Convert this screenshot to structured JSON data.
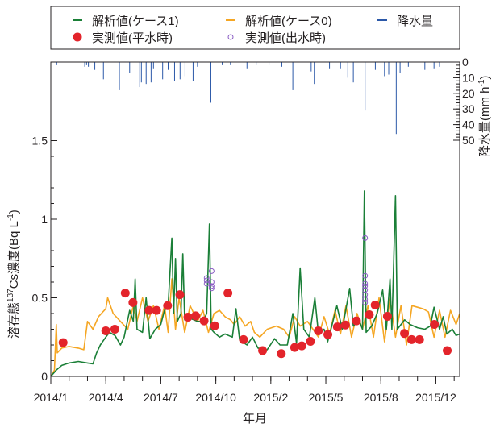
{
  "chart_data": {
    "type": "line",
    "title": "",
    "xlabel": "年月",
    "ylabel": "溶存態137Cs濃度(Bq L-1)",
    "ylabel_parts": {
      "prefix": "溶存態",
      "sup": "137",
      "mid": "Cs濃度(Bq L",
      "sup2": "-1",
      "suffix": ")"
    },
    "y2label_parts": {
      "prefix": "降水量(mm h",
      "sup": "-1",
      "suffix": ")"
    },
    "x_unit": "months since 2014/1 (tick index)",
    "xlim": [
      0,
      22.3
    ],
    "ylim": [
      0,
      2.0
    ],
    "y2lim": [
      0,
      50
    ],
    "y2_inverted": true,
    "x_ticks": [
      {
        "x": 0,
        "label": "2014/1"
      },
      {
        "x": 3,
        "label": "2014/4"
      },
      {
        "x": 6,
        "label": "2014/7"
      },
      {
        "x": 9,
        "label": "2014/10"
      },
      {
        "x": 12,
        "label": "2015/2"
      },
      {
        "x": 15,
        "label": "2015/5"
      },
      {
        "x": 18,
        "label": "2015/8"
      },
      {
        "x": 21,
        "label": "2015/12"
      }
    ],
    "y_ticks": [
      {
        "v": 0,
        "label": "0"
      },
      {
        "v": 0.5,
        "label": "0.5"
      },
      {
        "v": 1,
        "label": "1"
      },
      {
        "v": 1.5,
        "label": "1.5"
      }
    ],
    "y2_ticks": [
      {
        "v": 0,
        "label": "0"
      },
      {
        "v": 10,
        "label": "10"
      },
      {
        "v": 20,
        "label": "20"
      },
      {
        "v": 30,
        "label": "30"
      },
      {
        "v": 40,
        "label": "40"
      },
      {
        "v": 50,
        "label": "50"
      }
    ],
    "legend": {
      "placement": "top",
      "entries": [
        {
          "key": "case1",
          "label": "解析値(ケース1)"
        },
        {
          "key": "case0",
          "label": "解析値(ケース0)"
        },
        {
          "key": "rain",
          "label": "降水量"
        },
        {
          "key": "obs_base",
          "label": "実測値(平水時)"
        },
        {
          "key": "obs_flood",
          "label": "実測値(出水時)"
        }
      ]
    },
    "colors": {
      "case1": "#1a7f37",
      "case0": "#f5a623",
      "rain": "#2b58a8",
      "obs_base": "#e3242b",
      "obs_flood": "#8a5cc4"
    },
    "series": [
      {
        "name": "解析値(ケース1)",
        "key": "case1",
        "points": [
          [
            0,
            0
          ],
          [
            0.3,
            0.04
          ],
          [
            0.6,
            0.07
          ],
          [
            1,
            0.085
          ],
          [
            1.5,
            0.095
          ],
          [
            2,
            0.085
          ],
          [
            2.3,
            0.08
          ],
          [
            2.5,
            0.15
          ],
          [
            2.7,
            0.2
          ],
          [
            3,
            0.25
          ],
          [
            3.2,
            0.28
          ],
          [
            3.5,
            0.26
          ],
          [
            3.8,
            0.2
          ],
          [
            4,
            0.25
          ],
          [
            4.3,
            0.42
          ],
          [
            4.5,
            0.35
          ],
          [
            4.6,
            0.62
          ],
          [
            4.7,
            0.3
          ],
          [
            5,
            0.28
          ],
          [
            5.2,
            0.5
          ],
          [
            5.4,
            0.24
          ],
          [
            5.7,
            0.3
          ],
          [
            6,
            0.33
          ],
          [
            6.2,
            0.42
          ],
          [
            6.4,
            0.45
          ],
          [
            6.6,
            0.88
          ],
          [
            6.7,
            0.4
          ],
          [
            6.8,
            0.75
          ],
          [
            6.9,
            0.35
          ],
          [
            7.1,
            0.4
          ],
          [
            7.2,
            0.78
          ],
          [
            7.3,
            0.36
          ],
          [
            7.6,
            0.37
          ],
          [
            8,
            0.35
          ],
          [
            8.3,
            0.35
          ],
          [
            8.5,
            0.4
          ],
          [
            8.65,
            0.97
          ],
          [
            8.75,
            0.3
          ],
          [
            8.9,
            0.28
          ],
          [
            9.2,
            0.25
          ],
          [
            9.5,
            0.27
          ],
          [
            9.9,
            0.25
          ],
          [
            10.1,
            0.43
          ],
          [
            10.3,
            0.23
          ],
          [
            10.7,
            0.2
          ],
          [
            11,
            0.25
          ],
          [
            11.3,
            0.18
          ],
          [
            11.8,
            0.17
          ],
          [
            12.2,
            0.24
          ],
          [
            12.5,
            0.2
          ],
          [
            12.9,
            0.2
          ],
          [
            13.2,
            0.4
          ],
          [
            13.4,
            0.21
          ],
          [
            13.6,
            0.69
          ],
          [
            13.8,
            0.3
          ],
          [
            14.1,
            0.25
          ],
          [
            14.4,
            0.5
          ],
          [
            14.6,
            0.27
          ],
          [
            14.9,
            0.3
          ],
          [
            15.1,
            0.22
          ],
          [
            15.3,
            0.31
          ],
          [
            15.6,
            0.45
          ],
          [
            15.9,
            0.3
          ],
          [
            16.3,
            0.56
          ],
          [
            16.5,
            0.32
          ],
          [
            16.8,
            0.36
          ],
          [
            17.0,
            0.3
          ],
          [
            17.1,
            1.18
          ],
          [
            17.2,
            0.28
          ],
          [
            17.5,
            0.32
          ],
          [
            17.8,
            0.4
          ],
          [
            18.1,
            0.55
          ],
          [
            18.3,
            0.3
          ],
          [
            18.5,
            0.62
          ],
          [
            18.6,
            0.3
          ],
          [
            18.8,
            1.15
          ],
          [
            18.9,
            0.3
          ],
          [
            19.3,
            0.36
          ],
          [
            19.6,
            0.33
          ],
          [
            20,
            0.31
          ],
          [
            20.4,
            0.3
          ],
          [
            20.7,
            0.32
          ],
          [
            20.9,
            0.44
          ],
          [
            21.2,
            0.3
          ],
          [
            21.4,
            0.38
          ],
          [
            21.6,
            0.27
          ],
          [
            21.9,
            0.3
          ],
          [
            22.1,
            0.26
          ],
          [
            22.3,
            0.27
          ]
        ]
      },
      {
        "name": "解析値(ケース0)",
        "key": "case0",
        "points": [
          [
            0,
            0
          ],
          [
            0.2,
            0.04
          ],
          [
            0.3,
            0.33
          ],
          [
            0.35,
            0.15
          ],
          [
            0.6,
            0.18
          ],
          [
            1,
            0.19
          ],
          [
            1.5,
            0.18
          ],
          [
            1.8,
            0.17
          ],
          [
            2,
            0.35
          ],
          [
            2.3,
            0.3
          ],
          [
            2.6,
            0.38
          ],
          [
            3,
            0.43
          ],
          [
            3.1,
            0.5
          ],
          [
            3.4,
            0.4
          ],
          [
            3.8,
            0.35
          ],
          [
            4.2,
            0.3
          ],
          [
            4.5,
            0.45
          ],
          [
            4.7,
            0.35
          ],
          [
            5,
            0.5
          ],
          [
            5.3,
            0.35
          ],
          [
            5.6,
            0.45
          ],
          [
            5.9,
            0.3
          ],
          [
            6.2,
            0.45
          ],
          [
            6.4,
            0.28
          ],
          [
            6.6,
            0.62
          ],
          [
            6.8,
            0.3
          ],
          [
            7,
            0.5
          ],
          [
            7.3,
            0.28
          ],
          [
            7.6,
            0.45
          ],
          [
            8,
            0.35
          ],
          [
            8.3,
            0.42
          ],
          [
            8.6,
            0.28
          ],
          [
            8.9,
            0.4
          ],
          [
            9.2,
            0.42
          ],
          [
            9.5,
            0.38
          ],
          [
            9.8,
            0.36
          ],
          [
            10,
            0.33
          ],
          [
            10.3,
            0.38
          ],
          [
            10.6,
            0.32
          ],
          [
            10.9,
            0.35
          ],
          [
            11.1,
            0.28
          ],
          [
            11.4,
            0.25
          ],
          [
            11.8,
            0.3
          ],
          [
            12.3,
            0.32
          ],
          [
            12.7,
            0.3
          ],
          [
            13,
            0.25
          ],
          [
            13.3,
            0.38
          ],
          [
            13.6,
            0.32
          ],
          [
            14,
            0.35
          ],
          [
            14.3,
            0.3
          ],
          [
            14.6,
            0.25
          ],
          [
            14.9,
            0.38
          ],
          [
            15.2,
            0.27
          ],
          [
            15.5,
            0.42
          ],
          [
            15.8,
            0.27
          ],
          [
            16.1,
            0.45
          ],
          [
            16.4,
            0.25
          ],
          [
            16.7,
            0.4
          ],
          [
            17,
            0.3
          ],
          [
            17.3,
            0.45
          ],
          [
            17.6,
            0.25
          ],
          [
            17.9,
            0.5
          ],
          [
            18.2,
            0.22
          ],
          [
            18.5,
            0.5
          ],
          [
            18.8,
            0.25
          ],
          [
            19.1,
            0.45
          ],
          [
            19.4,
            0.2
          ],
          [
            19.7,
            0.45
          ],
          [
            20,
            0.44
          ],
          [
            20.3,
            0.43
          ],
          [
            20.6,
            0.41
          ],
          [
            20.9,
            0.25
          ],
          [
            21.2,
            0.42
          ],
          [
            21.5,
            0.25
          ],
          [
            21.8,
            0.42
          ],
          [
            22.1,
            0.33
          ],
          [
            22.3,
            0.4
          ]
        ]
      },
      {
        "name": "実測値(平水時)",
        "key": "obs_base",
        "points": [
          [
            0.67,
            0.215
          ],
          [
            3.0,
            0.29
          ],
          [
            3.49,
            0.3
          ],
          [
            4.06,
            0.53
          ],
          [
            4.48,
            0.47
          ],
          [
            5.36,
            0.42
          ],
          [
            5.77,
            0.42
          ],
          [
            6.37,
            0.45
          ],
          [
            7.04,
            0.52
          ],
          [
            7.48,
            0.377
          ],
          [
            7.9,
            0.385
          ],
          [
            8.36,
            0.353
          ],
          [
            8.94,
            0.322
          ],
          [
            9.66,
            0.53
          ],
          [
            10.51,
            0.234
          ],
          [
            11.55,
            0.164
          ],
          [
            12.57,
            0.145
          ],
          [
            13.3,
            0.184
          ],
          [
            13.69,
            0.194
          ],
          [
            14.16,
            0.223
          ],
          [
            14.59,
            0.29
          ],
          [
            15.11,
            0.266
          ],
          [
            15.63,
            0.315
          ],
          [
            16.07,
            0.327
          ],
          [
            16.67,
            0.353
          ],
          [
            17.37,
            0.392
          ],
          [
            17.69,
            0.454
          ],
          [
            18.36,
            0.382
          ],
          [
            19.29,
            0.273
          ],
          [
            19.68,
            0.234
          ],
          [
            20.11,
            0.234
          ],
          [
            20.92,
            0.331
          ],
          [
            21.62,
            0.164
          ]
        ]
      },
      {
        "name": "実測値(出水時)",
        "key": "obs_flood",
        "points": [
          [
            8.5,
            0.626
          ],
          [
            8.5,
            0.61
          ],
          [
            8.5,
            0.59
          ],
          [
            8.77,
            0.67
          ],
          [
            8.77,
            0.6
          ],
          [
            8.77,
            0.575
          ],
          [
            8.77,
            0.56
          ],
          [
            17.14,
            0.88
          ],
          [
            17.14,
            0.64
          ],
          [
            17.14,
            0.59
          ],
          [
            17.14,
            0.575
          ],
          [
            17.14,
            0.55
          ],
          [
            17.14,
            0.52
          ],
          [
            17.14,
            0.49
          ],
          [
            17.14,
            0.47
          ]
        ]
      },
      {
        "name": "降水量",
        "key": "rain",
        "type": "bar",
        "points": [
          [
            0.32,
            2
          ],
          [
            1.85,
            3
          ],
          [
            1.95,
            2
          ],
          [
            2.05,
            3
          ],
          [
            2.4,
            5
          ],
          [
            2.87,
            11
          ],
          [
            3.74,
            18
          ],
          [
            4.3,
            7
          ],
          [
            4.85,
            16
          ],
          [
            4.94,
            13
          ],
          [
            5.2,
            14
          ],
          [
            5.47,
            13
          ],
          [
            6.1,
            11
          ],
          [
            6.75,
            12
          ],
          [
            7.05,
            11
          ],
          [
            7.32,
            9
          ],
          [
            7.76,
            12
          ],
          [
            8.73,
            26
          ],
          [
            9.35,
            2
          ],
          [
            10.7,
            4
          ],
          [
            11.2,
            2
          ],
          [
            13.2,
            18
          ],
          [
            14.2,
            6
          ],
          [
            14.37,
            14
          ],
          [
            15.2,
            4
          ],
          [
            16.2,
            10
          ],
          [
            16.5,
            13
          ],
          [
            17.14,
            31
          ],
          [
            18.2,
            9
          ],
          [
            18.43,
            8
          ],
          [
            18.84,
            46
          ],
          [
            19.05,
            7
          ],
          [
            20.4,
            5
          ],
          [
            20.9,
            4
          ],
          [
            21.2,
            3
          ],
          [
            5.6,
            4
          ],
          [
            6.4,
            5
          ],
          [
            8.0,
            3
          ],
          [
            12.6,
            3
          ],
          [
            15.8,
            4
          ],
          [
            19.5,
            3
          ],
          [
            9.8,
            2
          ],
          [
            11.9,
            2
          ],
          [
            17.7,
            5
          ]
        ]
      }
    ]
  }
}
